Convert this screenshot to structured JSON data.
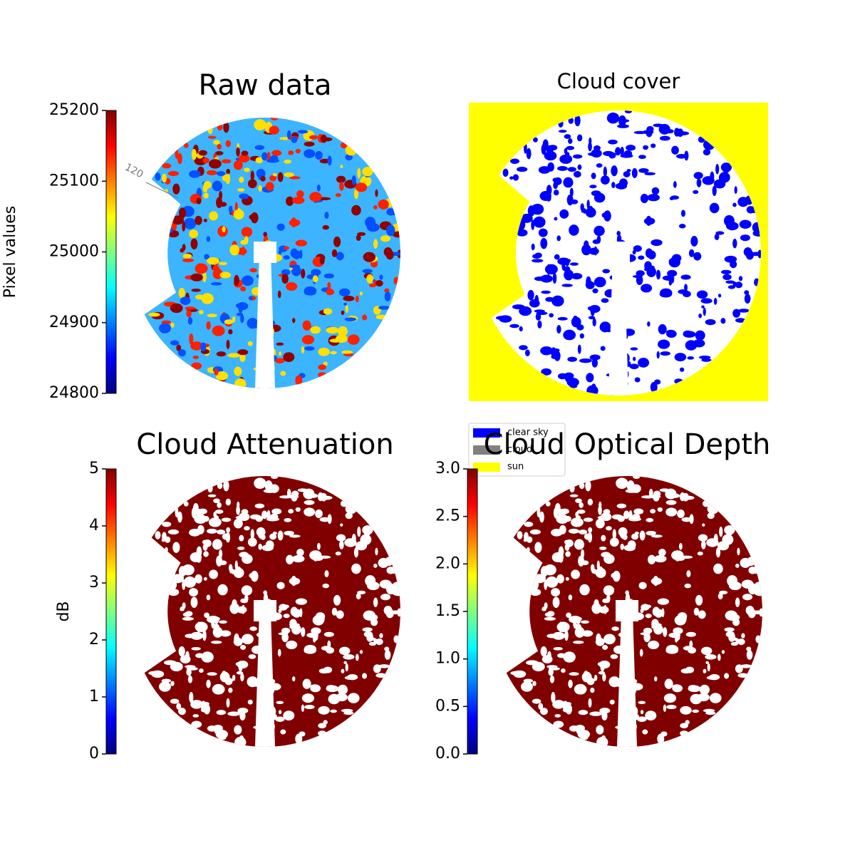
{
  "chart_data": [
    {
      "type": "image",
      "title": "Raw data",
      "ylabel": "Pixel values",
      "colormap": "jet",
      "ylim": [
        24800,
        25200
      ],
      "yticks": [
        24800,
        24900,
        25000,
        25100,
        25200
      ],
      "annotations": [
        "120"
      ]
    },
    {
      "type": "image",
      "title": "Cloud cover",
      "series": [
        {
          "name": "clear sky",
          "color": "#0000ff"
        },
        {
          "name": "cloud",
          "color": "#808080"
        },
        {
          "name": "sun",
          "color": "#ffff00"
        }
      ]
    },
    {
      "type": "image",
      "title": "Cloud Attenuation",
      "ylabel": "dB",
      "colormap": "jet",
      "ylim": [
        0,
        5
      ],
      "yticks": [
        0,
        1,
        2,
        3,
        4,
        5
      ]
    },
    {
      "type": "image",
      "title": "Cloud Optical Depth",
      "colormap": "jet",
      "ylim": [
        0,
        3
      ],
      "yticks": [
        {
          "value": 0,
          "label": "0.0"
        },
        0.5,
        {
          "value": 1,
          "label": "1.0"
        },
        1.5,
        {
          "value": 2,
          "label": "2.0"
        },
        2.5,
        {
          "value": 3,
          "label": "3.0"
        }
      ]
    }
  ]
}
